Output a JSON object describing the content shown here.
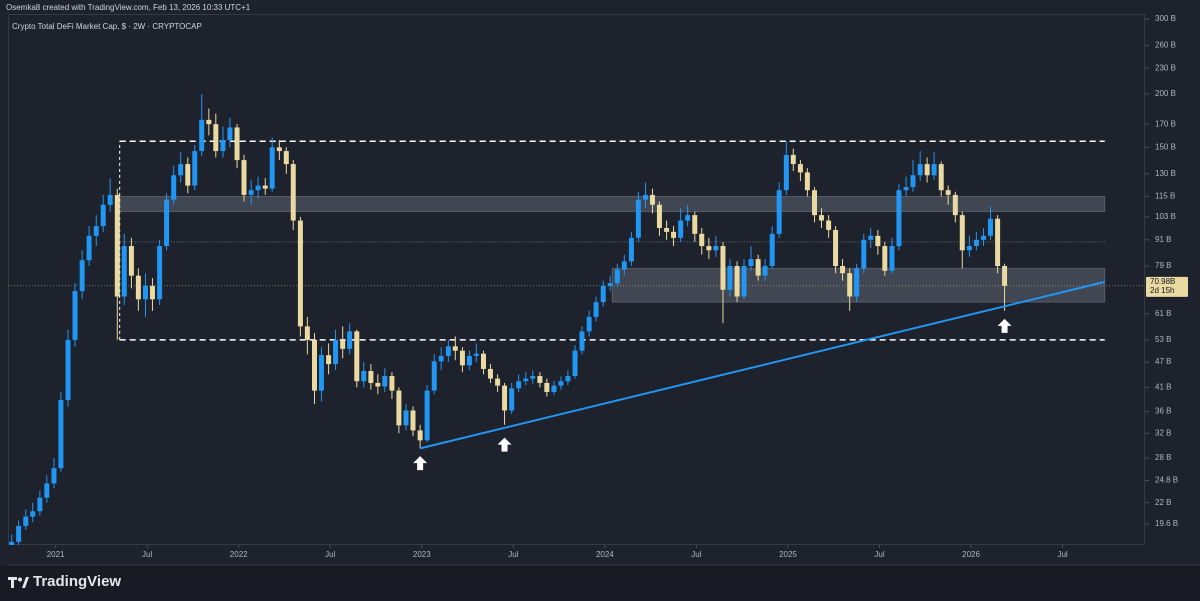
{
  "header": {
    "credit": "Osemka8 created with TradingView.com, Feb 13, 2026 10:33 UTC+1"
  },
  "footer": {
    "brand": "TradingView"
  },
  "chart_data": {
    "type": "candlestick",
    "title": "Crypto Total DeFi Market Cap, $ · 2W · CRYPTOCAP",
    "log_scale": true,
    "grid": false,
    "colors": {
      "up": "#2196f3",
      "down": "#ead9a0",
      "trendline": "#2196f3"
    },
    "xlim": [
      2020.74,
      2026.95
    ],
    "xticks": [
      2021,
      {
        "value": 2021.5,
        "label": "Jul"
      },
      2022,
      {
        "value": 2022.5,
        "label": "Jul"
      },
      2023,
      {
        "value": 2023.5,
        "label": "Jul"
      },
      2024,
      {
        "value": 2024.5,
        "label": "Jul"
      },
      2025,
      {
        "value": 2025.5,
        "label": "Jul"
      },
      2026,
      {
        "value": 2026.5,
        "label": "Jul"
      }
    ],
    "ylim": [
      17.5,
      315
    ],
    "yticks": [
      {
        "value": 300,
        "label": "300 B"
      },
      {
        "value": 260,
        "label": "260 B"
      },
      {
        "value": 230,
        "label": "230 B"
      },
      {
        "value": 200,
        "label": "200 B"
      },
      {
        "value": 170,
        "label": "170 B"
      },
      {
        "value": 150,
        "label": "150 B"
      },
      {
        "value": 130,
        "label": "130 B"
      },
      {
        "value": 115,
        "label": "115 B"
      },
      {
        "value": 103,
        "label": "103 B"
      },
      {
        "value": 91,
        "label": "91 B"
      },
      {
        "value": 79,
        "label": "79 B"
      },
      {
        "value": 61,
        "label": "61 B"
      },
      {
        "value": 53,
        "label": "53 B"
      },
      {
        "value": 47,
        "label": "47 B"
      },
      {
        "value": 41,
        "label": "41 B"
      },
      {
        "value": 36,
        "label": "36 B"
      },
      {
        "value": 32,
        "label": "32 B"
      },
      {
        "value": 28,
        "label": "28 B"
      },
      {
        "value": 24.8,
        "label": "24.8 B"
      },
      {
        "value": 22,
        "label": "22 B"
      },
      {
        "value": 19.6,
        "label": "19.6 B"
      }
    ],
    "x": [
      2020.76,
      2020.798,
      2020.837,
      2020.875,
      2020.914,
      2020.952,
      2020.991,
      2021.029,
      2021.068,
      2021.106,
      2021.145,
      2021.183,
      2021.222,
      2021.26,
      2021.298,
      2021.337,
      2021.375,
      2021.414,
      2021.452,
      2021.491,
      2021.529,
      2021.568,
      2021.606,
      2021.645,
      2021.683,
      2021.722,
      2021.76,
      2021.798,
      2021.837,
      2021.875,
      2021.914,
      2021.952,
      2021.991,
      2022.029,
      2022.068,
      2022.106,
      2022.145,
      2022.183,
      2022.222,
      2022.26,
      2022.298,
      2022.337,
      2022.375,
      2022.414,
      2022.452,
      2022.491,
      2022.529,
      2022.568,
      2022.606,
      2022.645,
      2022.683,
      2022.722,
      2022.76,
      2022.798,
      2022.837,
      2022.875,
      2022.914,
      2022.952,
      2022.991,
      2023.029,
      2023.068,
      2023.106,
      2023.145,
      2023.183,
      2023.222,
      2023.26,
      2023.298,
      2023.337,
      2023.375,
      2023.414,
      2023.452,
      2023.491,
      2023.529,
      2023.568,
      2023.606,
      2023.645,
      2023.683,
      2023.722,
      2023.76,
      2023.798,
      2023.837,
      2023.875,
      2023.914,
      2023.952,
      2023.991,
      2024.029,
      2024.068,
      2024.106,
      2024.145,
      2024.183,
      2024.222,
      2024.26,
      2024.298,
      2024.337,
      2024.375,
      2024.414,
      2024.452,
      2024.491,
      2024.529,
      2024.568,
      2024.606,
      2024.645,
      2024.683,
      2024.722,
      2024.76,
      2024.798,
      2024.837,
      2024.875,
      2024.914,
      2024.952,
      2024.991,
      2025.029,
      2025.068,
      2025.106,
      2025.145,
      2025.183,
      2025.222,
      2025.26,
      2025.298,
      2025.337,
      2025.375,
      2025.414,
      2025.452,
      2025.491,
      2025.529,
      2025.568,
      2025.606,
      2025.645,
      2025.683,
      2025.722,
      2025.76,
      2025.798,
      2025.837,
      2025.875,
      2025.914,
      2025.952,
      2025.991,
      2026.029,
      2026.068,
      2026.106,
      2026.145,
      2026.183
    ],
    "open": [
      17,
      17.8,
      19.4,
      20.4,
      21,
      22.6,
      24.4,
      26.5,
      38.3,
      53,
      69,
      81.5,
      93,
      98,
      110,
      116,
      67,
      88,
      75,
      66,
      71,
      66,
      88,
      113,
      129,
      137,
      122,
      147,
      174,
      170,
      147,
      156,
      167,
      140,
      116,
      119,
      122,
      120,
      150,
      147,
      137,
      101,
      57,
      53,
      40.3,
      48.8,
      46.5,
      53,
      50.5,
      55.5,
      42.4,
      44.8,
      42,
      41.2,
      43.6,
      40.3,
      33.4,
      36.2,
      32.5,
      30.8,
      40.3,
      47.2,
      48.6,
      51.2,
      50,
      46.2,
      48.6,
      49.2,
      45.3,
      43,
      41.4,
      36.2,
      40.8,
      42.4,
      43,
      43.6,
      42,
      40,
      41.4,
      42.4,
      43.6,
      50,
      55.5,
      60,
      65,
      71,
      72,
      77.5,
      81,
      92,
      113,
      116,
      110,
      97,
      95,
      92,
      101,
      104,
      94,
      88,
      86,
      88,
      69.5,
      79,
      67,
      79,
      82,
      75,
      79,
      94,
      119,
      144,
      137,
      131,
      119,
      104,
      101,
      96,
      79,
      76,
      67,
      78,
      91,
      93,
      88,
      77,
      88,
      119,
      121,
      129,
      137,
      129,
      137,
      119,
      116,
      104,
      86,
      88,
      91,
      93,
      102,
      79
    ],
    "high": [
      18.5,
      20,
      21.2,
      22,
      23.5,
      25.5,
      28,
      40,
      56,
      72,
      86,
      98,
      104,
      116,
      127,
      120,
      94,
      92,
      78,
      76,
      74,
      91,
      117,
      136,
      146,
      142,
      152,
      200,
      185,
      180,
      168,
      176,
      170,
      144,
      126,
      128,
      127,
      158,
      156,
      150,
      140,
      103,
      60,
      55,
      51,
      52,
      56,
      57,
      58,
      56,
      47,
      46.5,
      44,
      45.5,
      44.5,
      41,
      37.5,
      37,
      33.5,
      41.5,
      49,
      51,
      53,
      54,
      51,
      50,
      52,
      50,
      46.5,
      44,
      42,
      42,
      44,
      44.5,
      45,
      44.5,
      43,
      42.5,
      43.5,
      45,
      51.5,
      57,
      62,
      67,
      73,
      75,
      80,
      84,
      95,
      118,
      124,
      120,
      112,
      101,
      98,
      108,
      110,
      106,
      97,
      92,
      93,
      90,
      82,
      81,
      82,
      88,
      84,
      82,
      98,
      124,
      155,
      149,
      140,
      134,
      121,
      108,
      104,
      98,
      82,
      78,
      80,
      94,
      97,
      96,
      90,
      92,
      123,
      128,
      140,
      147,
      142,
      146,
      139,
      122,
      118,
      106,
      93,
      95,
      97,
      109,
      104,
      80
    ],
    "low": [
      16.5,
      17.5,
      19,
      19.8,
      20.5,
      22,
      23.8,
      26,
      37,
      51,
      66,
      79,
      88,
      95,
      106,
      53,
      64,
      70,
      62,
      60,
      62,
      64,
      86,
      110,
      124,
      117,
      119,
      143,
      160,
      142,
      142,
      150,
      134,
      112,
      110,
      114,
      116,
      118,
      140,
      130,
      96,
      54,
      49,
      37.5,
      38,
      44,
      45,
      48,
      49,
      41,
      41,
      40.5,
      39.5,
      40,
      38.5,
      32,
      32.5,
      31.5,
      29.5,
      30.5,
      39.5,
      45,
      47,
      47.5,
      44.5,
      45,
      47,
      44,
      42,
      40,
      33.5,
      35.5,
      40,
      41.5,
      41.8,
      41,
      39,
      39.3,
      40.5,
      41.5,
      43,
      49,
      54,
      58.5,
      63.5,
      69,
      70.5,
      75,
      79,
      90,
      108,
      105,
      93,
      91,
      88,
      90,
      98,
      90,
      84,
      82,
      83,
      58,
      67,
      65,
      66,
      77,
      73,
      73,
      78,
      92,
      116,
      132,
      125,
      115,
      100,
      97,
      92,
      76,
      73,
      62,
      65,
      76,
      87,
      84,
      75,
      76,
      86,
      115,
      118,
      125,
      124,
      126,
      115,
      110,
      100,
      78,
      83,
      86,
      88,
      91,
      76,
      62
    ],
    "close": [
      17.8,
      19.4,
      20.4,
      21,
      22.6,
      24.4,
      26.5,
      38.3,
      53,
      69,
      81.5,
      93,
      98,
      110,
      116,
      67,
      88,
      75,
      66,
      71,
      66,
      88,
      113,
      129,
      137,
      122,
      147,
      174,
      170,
      147,
      156,
      167,
      140,
      116,
      119,
      122,
      120,
      150,
      147,
      137,
      101,
      57,
      53,
      40.3,
      48.8,
      46.5,
      53,
      50.5,
      55.5,
      42.4,
      44.8,
      42,
      41.2,
      43.6,
      40.3,
      33.4,
      36.2,
      32.5,
      30.8,
      40.3,
      47.2,
      48.6,
      51.2,
      50,
      46.2,
      48.6,
      49.2,
      45.3,
      43,
      41.4,
      36.2,
      40.8,
      42.4,
      43,
      43.6,
      42,
      40,
      41.4,
      42.4,
      43.6,
      50,
      55.5,
      60,
      65,
      71,
      72,
      77.5,
      81,
      92,
      113,
      116,
      110,
      97,
      95,
      92,
      101,
      104,
      94,
      88,
      86,
      88,
      69.5,
      79,
      67,
      79,
      82,
      75,
      79,
      94,
      119,
      144,
      137,
      131,
      119,
      104,
      101,
      96,
      79,
      76,
      67,
      78,
      91,
      93,
      88,
      77,
      88,
      119,
      121,
      129,
      137,
      129,
      137,
      119,
      116,
      104,
      86,
      88,
      91,
      93,
      102,
      79,
      70.98
    ],
    "last_price_label": "70.98B",
    "countdown": "2d 15h",
    "annotations": {
      "levels": [
        {
          "y": 155,
          "x": [
            2021.35,
            2026.73
          ]
        },
        {
          "y": 53,
          "x": [
            2021.35,
            2026.73
          ]
        }
      ],
      "range_edge": {
        "x": 2021.35,
        "y": [
          53,
          155
        ]
      },
      "dotted_level": {
        "y": 90,
        "x": [
          2021.35,
          2026.73
        ]
      },
      "zones": [
        {
          "y": [
            106,
            115
          ],
          "x": [
            2021.34,
            2026.73
          ]
        },
        {
          "y": [
            65,
            78
          ],
          "x": [
            2024.04,
            2026.73
          ]
        }
      ],
      "trendline": {
        "x": [
          2022.991,
          2026.73
        ],
        "y": [
          29.5,
          72.5
        ]
      },
      "arrows": [
        {
          "x": 2022.991,
          "y": 28.6
        },
        {
          "x": 2023.452,
          "y": 31.6
        },
        {
          "x": 2026.183,
          "y": 60
        }
      ]
    }
  }
}
